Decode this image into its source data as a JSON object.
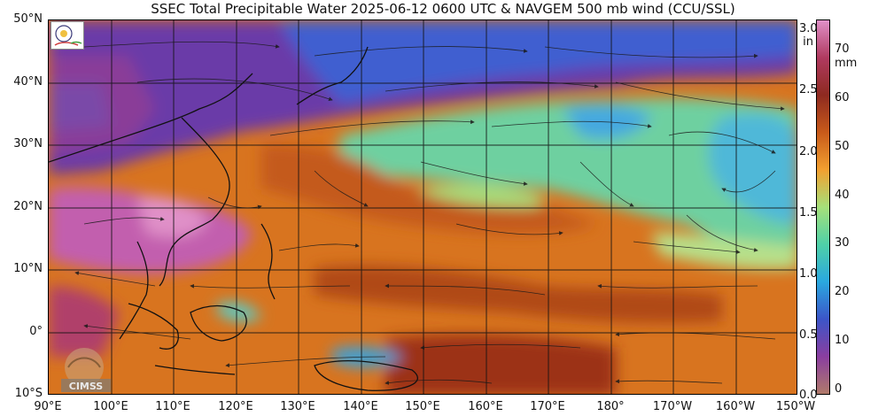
{
  "title": "SSEC Total Precipitable Water  2025-06-12 0600 UTC & NAVGEM 500 mb wind (CCU/SSL)",
  "lat_labels": [
    "50°N",
    "40°N",
    "30°N",
    "20°N",
    "10°N",
    "0°",
    "10°S"
  ],
  "lon_labels": [
    "90°E",
    "100°E",
    "110°E",
    "120°E",
    "130°E",
    "140°E",
    "150°E",
    "160°E",
    "170°E",
    "180°",
    "170°W",
    "160°W",
    "150°W"
  ],
  "colorbar": {
    "inch_unit": "in",
    "mm_unit": "mm",
    "inch_ticks": [
      "3.0",
      "2.5",
      "2.0",
      "1.5",
      "1.0",
      "0.5",
      "0.0"
    ],
    "mm_ticks": [
      "70",
      "60",
      "50",
      "40",
      "30",
      "20",
      "10",
      "0"
    ],
    "range_mm": [
      0,
      76
    ],
    "colors": [
      "#b07a6a",
      "#8a3ea0",
      "#3c55c8",
      "#2aa8e0",
      "#4fd1a8",
      "#a6e07a",
      "#f2a030",
      "#c85a1a",
      "#8e2a20",
      "#b03a60",
      "#e090c8"
    ]
  },
  "logo_caption": "CIMSS",
  "colors": {
    "moist_orange": "#e07a22",
    "deep_moist": "#a02a1e",
    "very_moist_pink": "#c060b0",
    "dry_purple": "#7a3a9a",
    "dry_blue": "#3a64d0",
    "mid_green": "#6ad49a"
  }
}
